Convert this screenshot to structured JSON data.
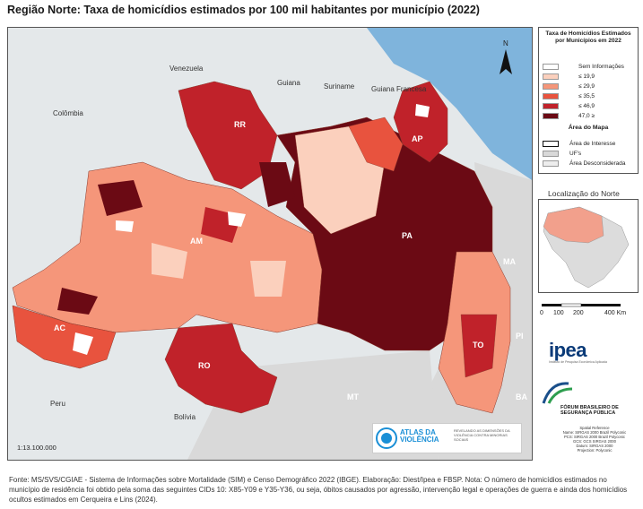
{
  "title": "Região Norte: Taxa de homicídios estimados por 100 mil habitantes por município (2022)",
  "map": {
    "north_arrow": "N",
    "country_labels": [
      "Venezuela",
      "Guiana",
      "Suriname",
      "Guiana Francesa",
      "Colômbia",
      "Peru",
      "Bolívia"
    ],
    "state_labels": [
      "RR",
      "AP",
      "AM",
      "PA",
      "AC",
      "RO",
      "TO"
    ],
    "neighbor_state_labels": [
      "MA",
      "MT",
      "PI",
      "BA"
    ],
    "scale": "1:13.100.000"
  },
  "legend": {
    "title": "Taxa de Homicídios Estimados por Municípios em 2022",
    "classes": [
      {
        "label": "Sem Informações",
        "color": "#ffffff"
      },
      {
        "label": "≤ 19,9",
        "color": "#fbd0bd"
      },
      {
        "label": "≤ 29,9",
        "color": "#f5967a"
      },
      {
        "label": "≤ 35,5",
        "color": "#e8533e"
      },
      {
        "label": "≤ 46,9",
        "color": "#c0222a"
      },
      {
        "label": "47,0 ≥",
        "color": "#6b0a14"
      }
    ],
    "area_title": "Área do Mapa",
    "area_items": [
      {
        "label": "Área de Interesse",
        "kind": "outline"
      },
      {
        "label": "UF's",
        "color": "#d9d9d9"
      },
      {
        "label": "Área Desconsiderada",
        "color": "#ededed"
      }
    ]
  },
  "inset": {
    "title": "Localização do Norte"
  },
  "scalebar": {
    "ticks": [
      "0",
      "100",
      "200",
      "400 Km"
    ]
  },
  "logos": {
    "ipea": "ipea",
    "ipea_sub": "Instituto de Pesquisa Econômica Aplicada",
    "forum_line1": "FÓRUM BRASILEIRO DE",
    "forum_line2": "SEGURANÇA PÚBLICA",
    "atlas_line1": "ATLAS DA",
    "atlas_line2": "VIOLÊNCIA",
    "atlas_sub": "REVELANDO AS DIMENSÕES DA VIOLÊNCIA CONTRA MINORIAS SOCIAIS"
  },
  "spatial_ref": [
    "Spatial Reference",
    "Name: SIRGAS 2000 Brazil Polyconic",
    "PCS: SIRGAS 2000 Brazil Polyconic",
    "GCS: GCS SIRGAS 2000",
    "Datum: SIRGAS 2000",
    "Projection: Polyconic"
  ],
  "footnote": "Fonte: MS/SVS/CGIAE - Sistema de Informações sobre Mortalidade (SIM) e Censo Demográfico 2022 (IBGE). Elaboração: Diest/Ipea e FBSP. Nota: O número de homicídios estimados no município de residência foi obtido pela soma das seguintes CIDs 10: X85-Y09 e Y35-Y36, ou seja, óbitos causados por agressão, intervenção legal e operações de guerra e ainda dos homicídios ocultos estimados em Cerqueira e Lins (2024)."
}
